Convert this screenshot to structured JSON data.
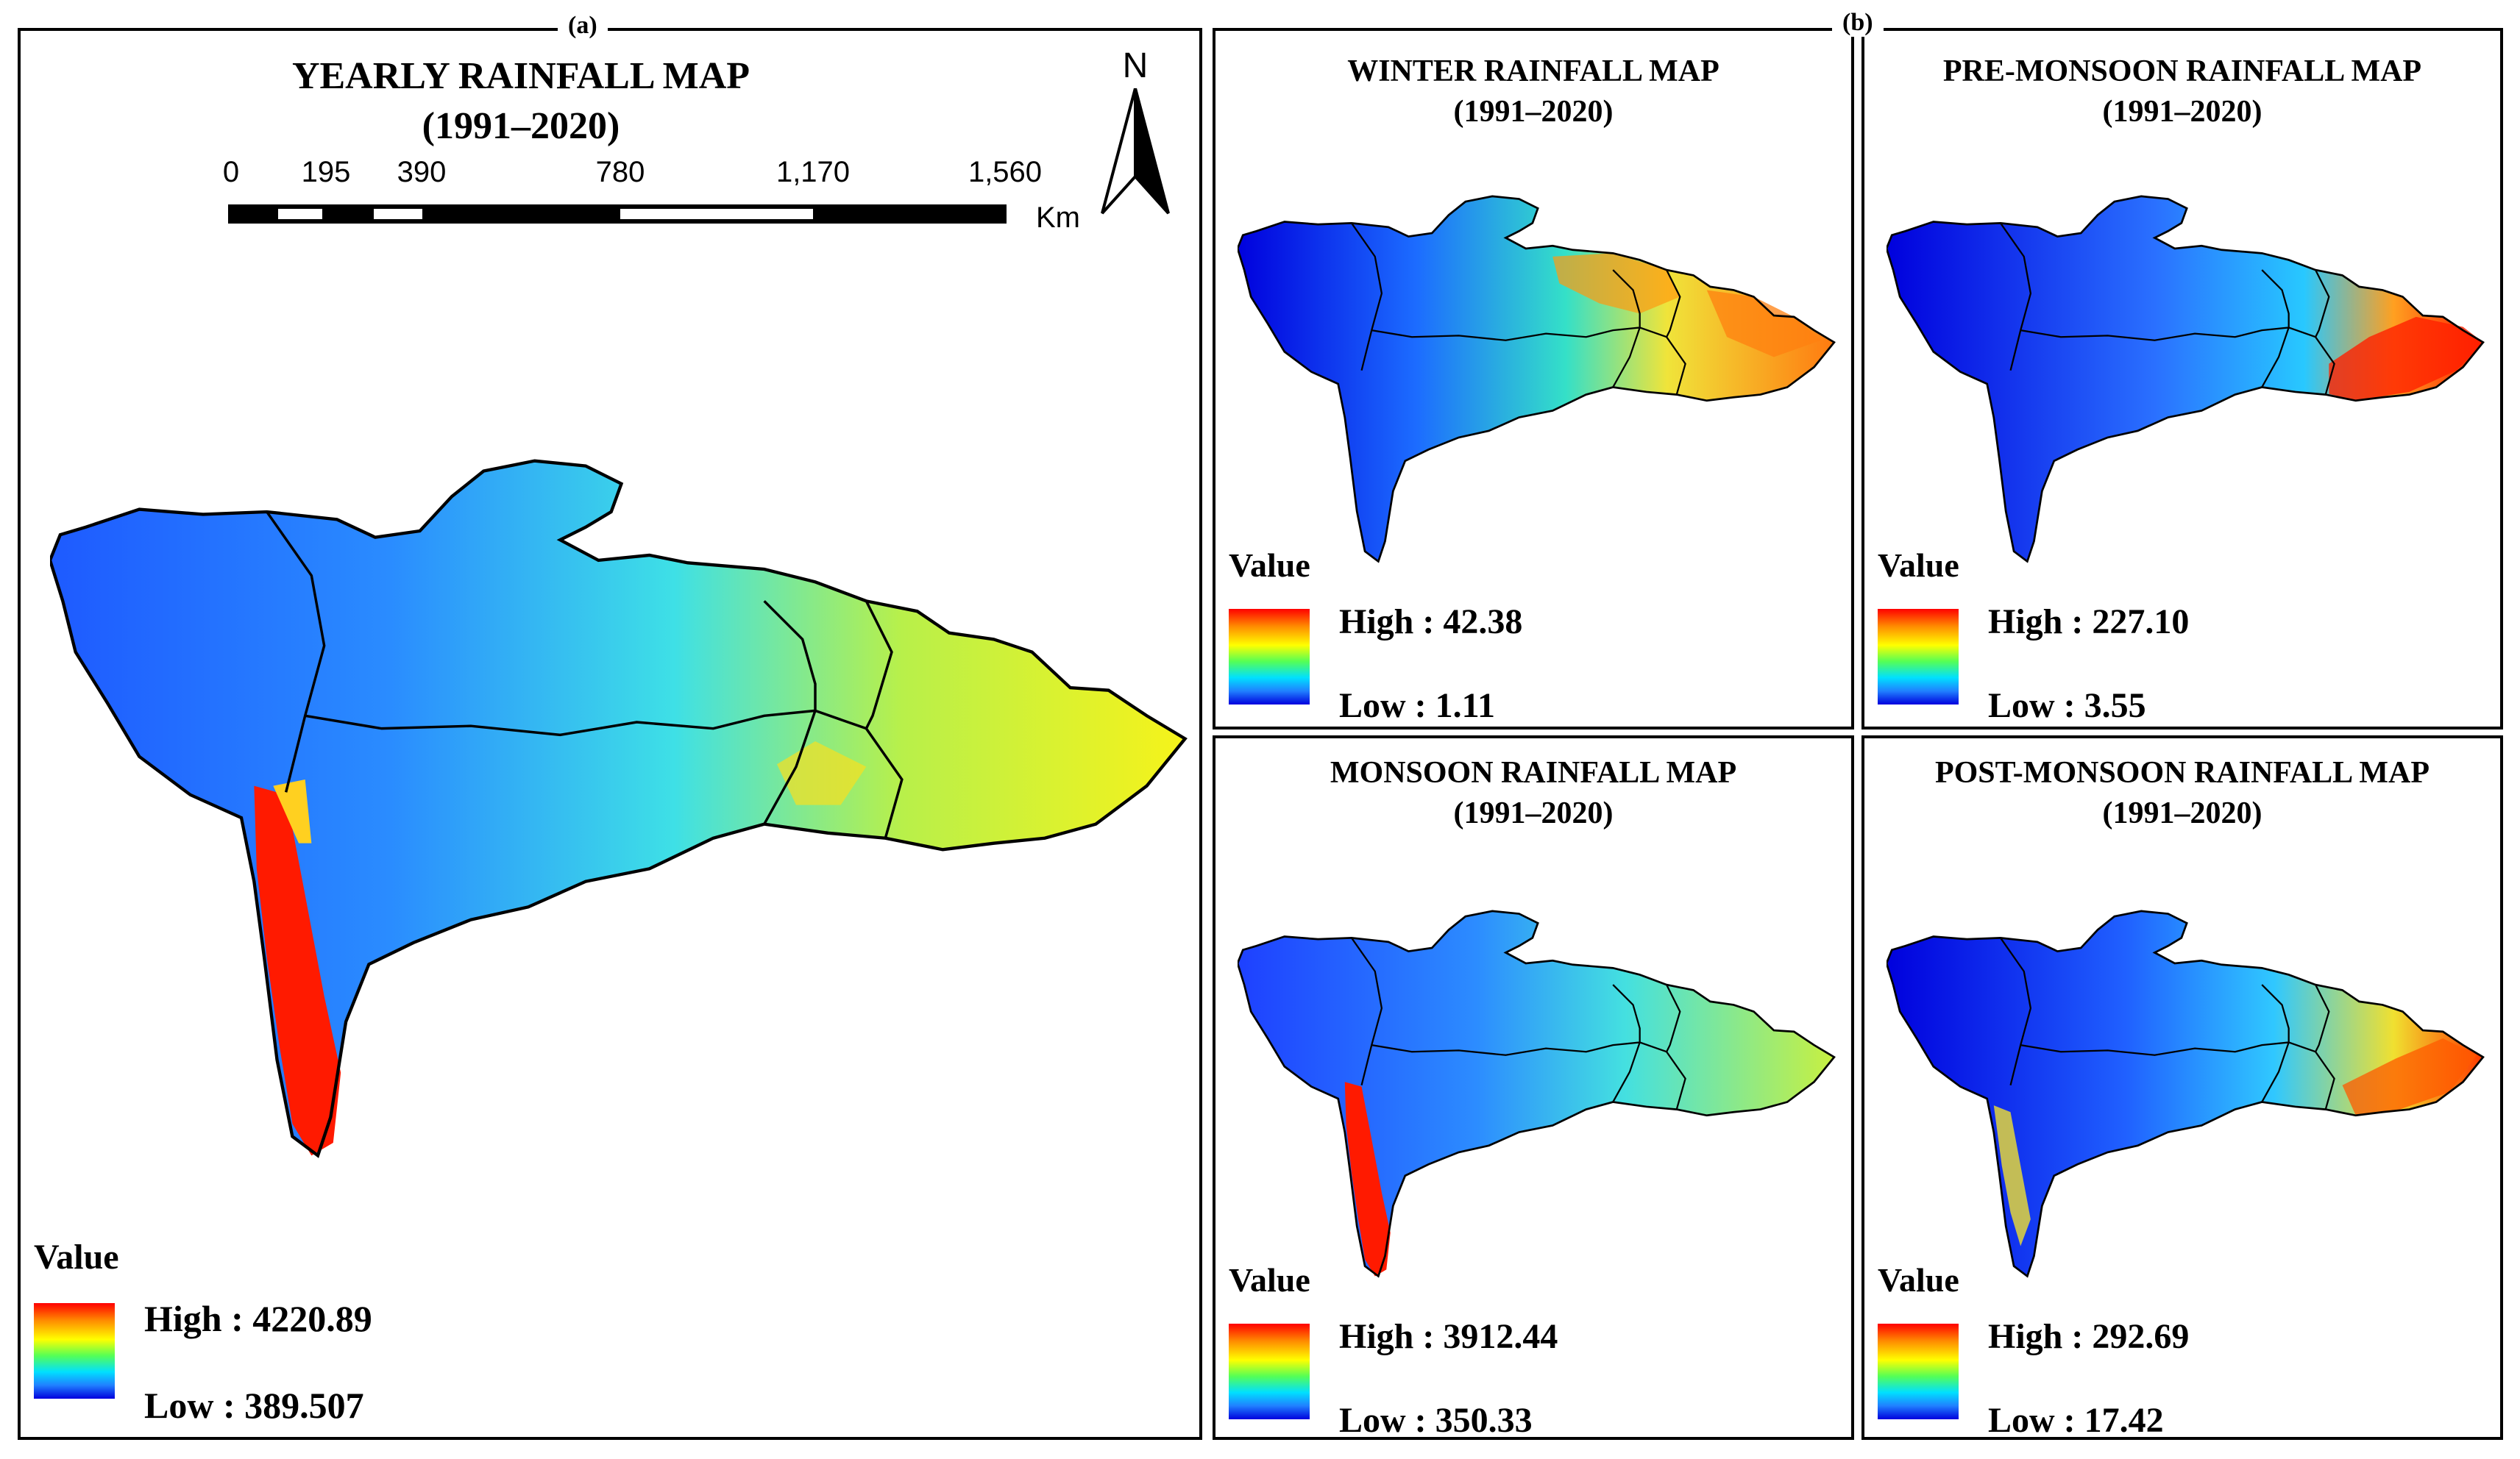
{
  "panel_a": {
    "label": "(a)",
    "title": "YEARLY RAINFALL MAP",
    "period": "(1991–2020)",
    "north_label": "N",
    "scale": {
      "ticks": [
        "0",
        "195",
        "390",
        "780",
        "1,170",
        "1,560"
      ],
      "unit": "Km"
    },
    "legend": {
      "title": "Value",
      "high": "High : 4220.89",
      "low": "Low : 389.507"
    }
  },
  "panel_b": {
    "label": "(b)",
    "maps": [
      {
        "title": "WINTER RAINFALL MAP",
        "period": "(1991–2020)",
        "legend": {
          "title": "Value",
          "high": "High : 42.38",
          "low": "Low : 1.11"
        }
      },
      {
        "title": "PRE-MONSOON RAINFALL MAP",
        "period": "(1991–2020)",
        "legend": {
          "title": "Value",
          "high": "High : 227.10",
          "low": "Low : 3.55"
        }
      },
      {
        "title": "MONSOON RAINFALL MAP",
        "period": "(1991–2020)",
        "legend": {
          "title": "Value",
          "high": "High : 3912.44",
          "low": "Low : 350.33"
        }
      },
      {
        "title": "POST-MONSOON RAINFALL MAP",
        "period": "(1991–2020)",
        "legend": {
          "title": "Value",
          "high": "High : 292.69",
          "low": "Low : 17.42"
        }
      }
    ]
  },
  "colors": {
    "high": "#ff0000",
    "mid": "#ffff00",
    "low": "#0000dd",
    "cyan": "#00d8ff",
    "boundary": "#000000"
  }
}
